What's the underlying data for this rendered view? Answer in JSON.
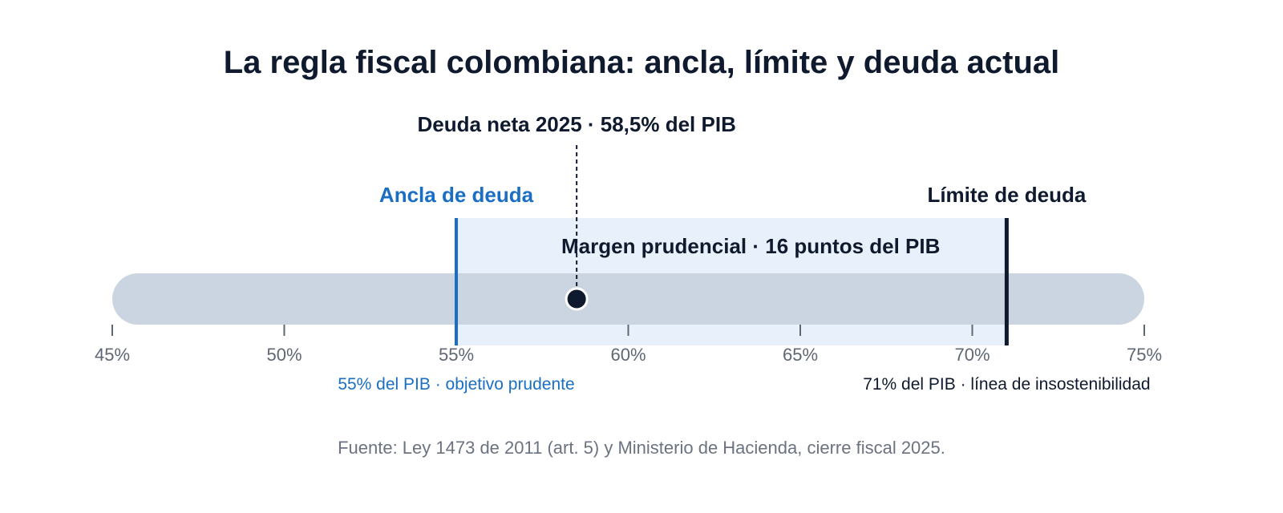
{
  "chart_data": {
    "type": "gauge",
    "title": "La regla fiscal colombiana: ancla, límite y deuda actual",
    "axis": {
      "min": 45,
      "max": 75,
      "ticks": [
        45,
        50,
        55,
        60,
        65,
        70,
        75
      ],
      "tick_labels": [
        "45%",
        "50%",
        "55%",
        "60%",
        "65%",
        "70%",
        "75%"
      ]
    },
    "current": {
      "value": 58.5,
      "label": "Deuda neta 2025 · 58,5% del PIB"
    },
    "anchor": {
      "value": 55,
      "label": "Ancla de deuda",
      "note": "55% del PIB · objetivo prudente"
    },
    "limit": {
      "value": 71,
      "label": "Límite de deuda",
      "note": "71% del PIB · línea de insostenibilidad"
    },
    "margin": {
      "from": 55,
      "to": 71,
      "label": "Margen prudencial · 16 puntos del PIB"
    },
    "source": "Fuente: Ley 1473 de 2011 (art. 5) y Ministerio de Hacienda, cierre fiscal 2025.",
    "colors": {
      "track": "#cbd5e1",
      "margin_band": "#e8f1fb",
      "anchor": "#1a6fc4",
      "limit": "#0f1a2e",
      "marker": "#0f1a2e",
      "title": "#0f1a2e",
      "tick_label": "#5f6773",
      "source": "#6b7280"
    }
  }
}
